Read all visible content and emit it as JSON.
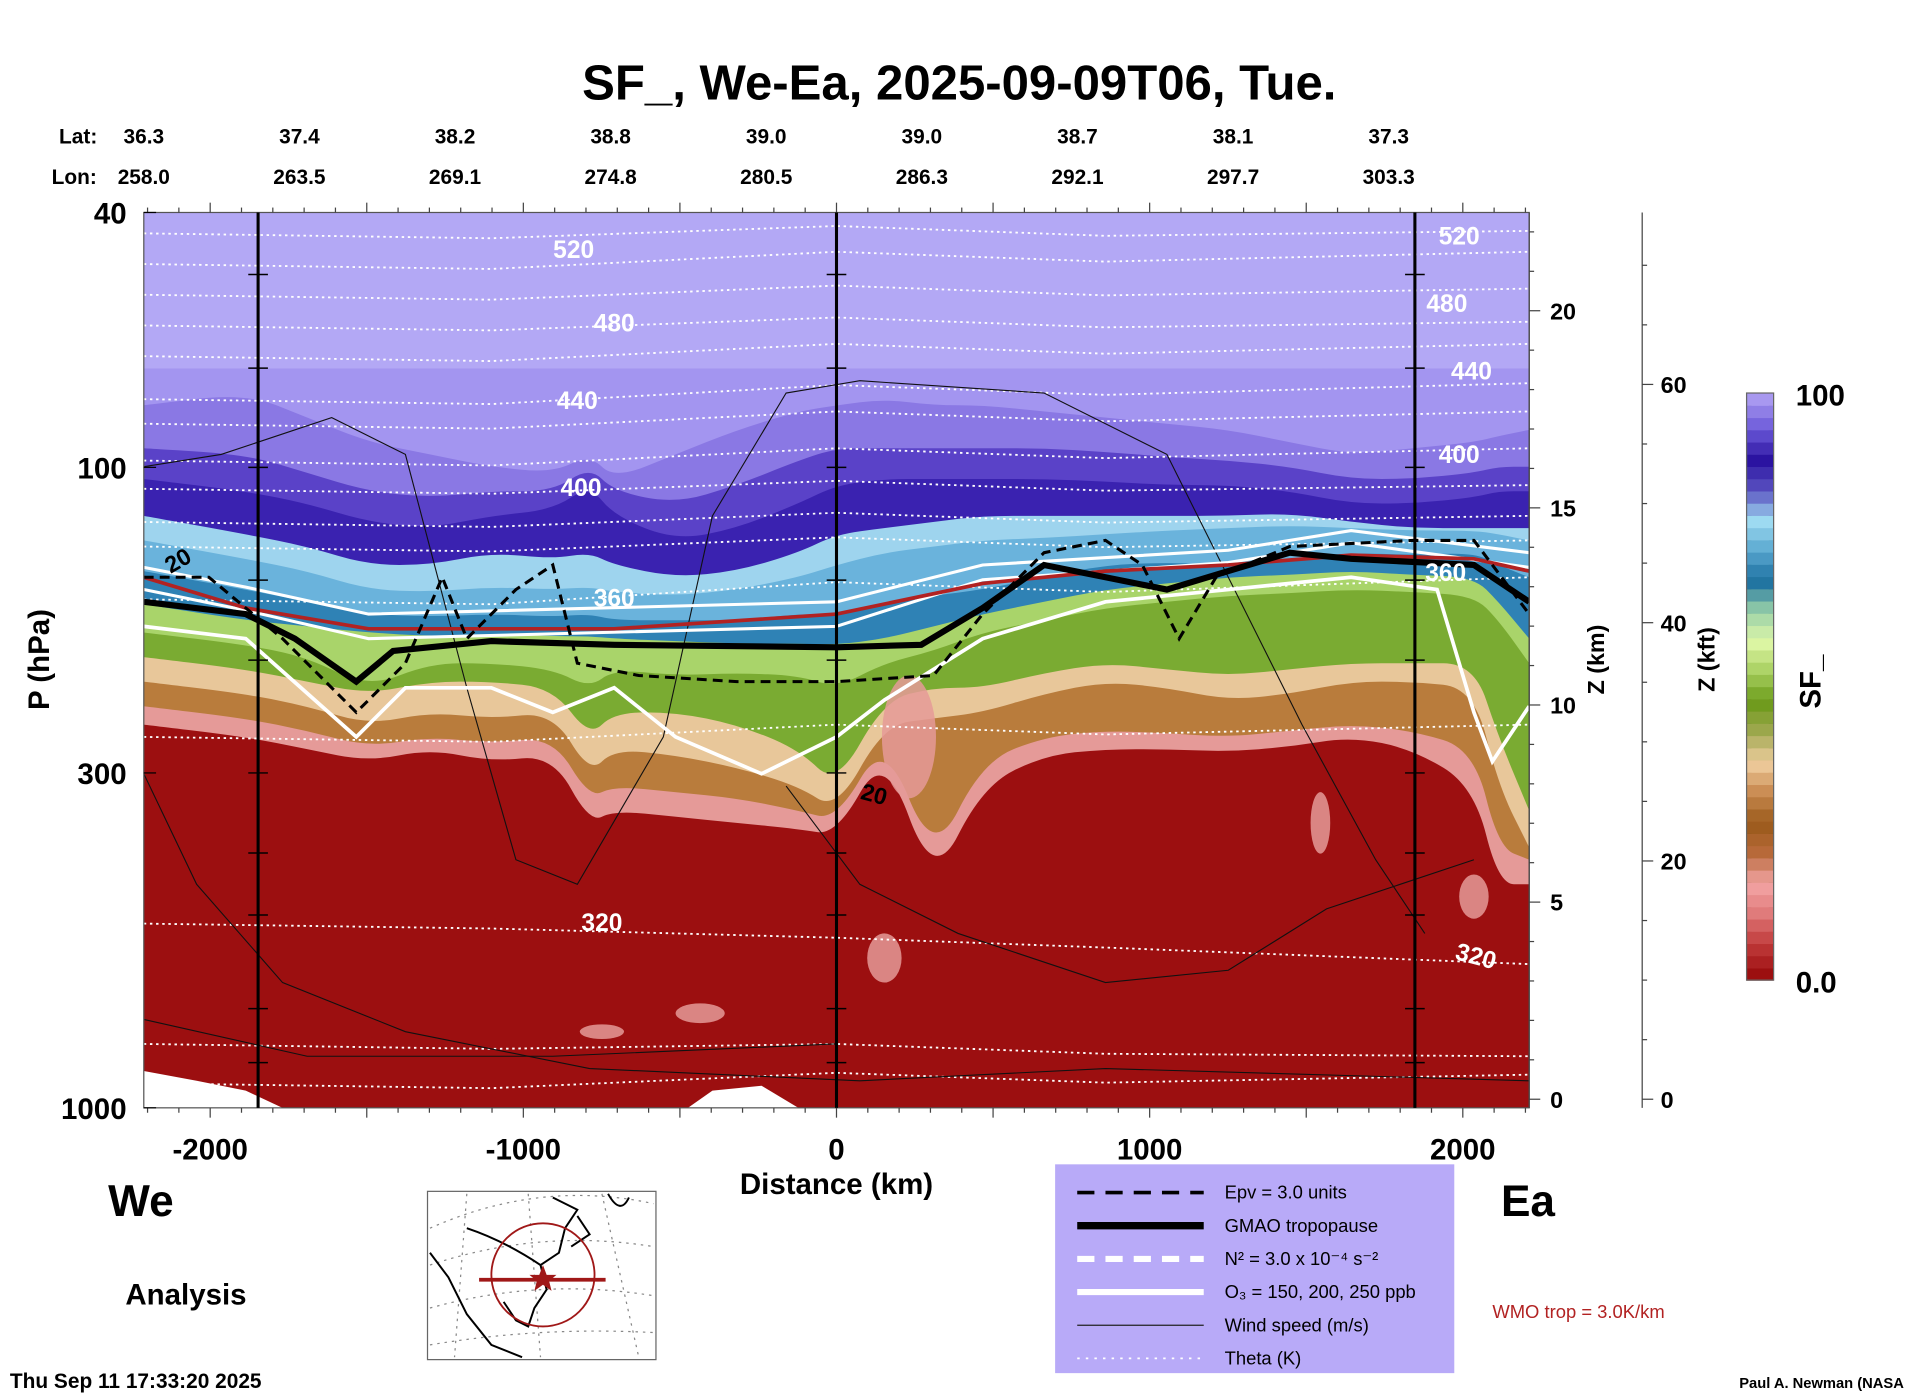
{
  "title": "SF_, We-Ea, 2025-09-09T06, Tue.",
  "lat_label": "Lat:",
  "lon_label": "Lon:",
  "lats": [
    "36.3",
    "37.4",
    "38.2",
    "38.8",
    "39.0",
    "39.0",
    "38.7",
    "38.1",
    "37.3"
  ],
  "lons": [
    "258.0",
    "263.5",
    "269.1",
    "274.8",
    "280.5",
    "286.3",
    "292.1",
    "297.7",
    "303.3"
  ],
  "left_label": "We",
  "right_label": "Ea",
  "analysis_label": "Analysis",
  "timestamp": "Thu Sep 11 17:33:20 2025",
  "credit": "Paul A. Newman (NASA",
  "wmo_label": "WMO trop = 3.0K/km",
  "legend": [
    {
      "style": "black-dashed",
      "label": "Epv = 3.0 units"
    },
    {
      "style": "black-thick",
      "label": "GMAO tropopause"
    },
    {
      "style": "white-dashed",
      "label": "N² = 3.0 x 10⁻⁴ s⁻²"
    },
    {
      "style": "white-solid",
      "label": "O₃ = 150, 200, 250 ppb"
    },
    {
      "style": "black-thin",
      "label": "Wind speed (m/s)"
    },
    {
      "style": "white-dotted",
      "label": "Theta (K)"
    }
  ],
  "colors": {
    "legend_bg": "#b8aaf8",
    "wmo": "#b22222",
    "ground": "#ffffff"
  },
  "chart_data": {
    "type": "heatmap",
    "title": "SF_, We-Ea, 2025-09-09T06, Tue.",
    "xlabel": "Distance (km)",
    "ylabel": "P (hPa)",
    "xlim": [
      -2212,
      2212
    ],
    "ylim": [
      1000,
      40
    ],
    "yscale": "log",
    "x_ticks": [
      -2000,
      -1000,
      0,
      1000,
      2000
    ],
    "y_ticks": [
      40,
      100,
      300,
      1000
    ],
    "section_markers_km": [
      -1847,
      0,
      1847
    ],
    "z_km_axis": {
      "label": "Z (km)",
      "ticks": [
        0,
        5,
        10,
        15,
        20
      ]
    },
    "z_kft_axis": {
      "label": "Z (kft)",
      "ticks": [
        0,
        20,
        40,
        60
      ]
    },
    "colorbar": {
      "label": "SF_",
      "min_label": "0.0",
      "max_label": "100",
      "range": [
        0,
        100
      ],
      "levels": 48
    },
    "theta_labels_K": [
      "520",
      "480",
      "440",
      "400",
      "360",
      "320"
    ],
    "wind_labels_ms": [
      "20",
      "20"
    ]
  }
}
